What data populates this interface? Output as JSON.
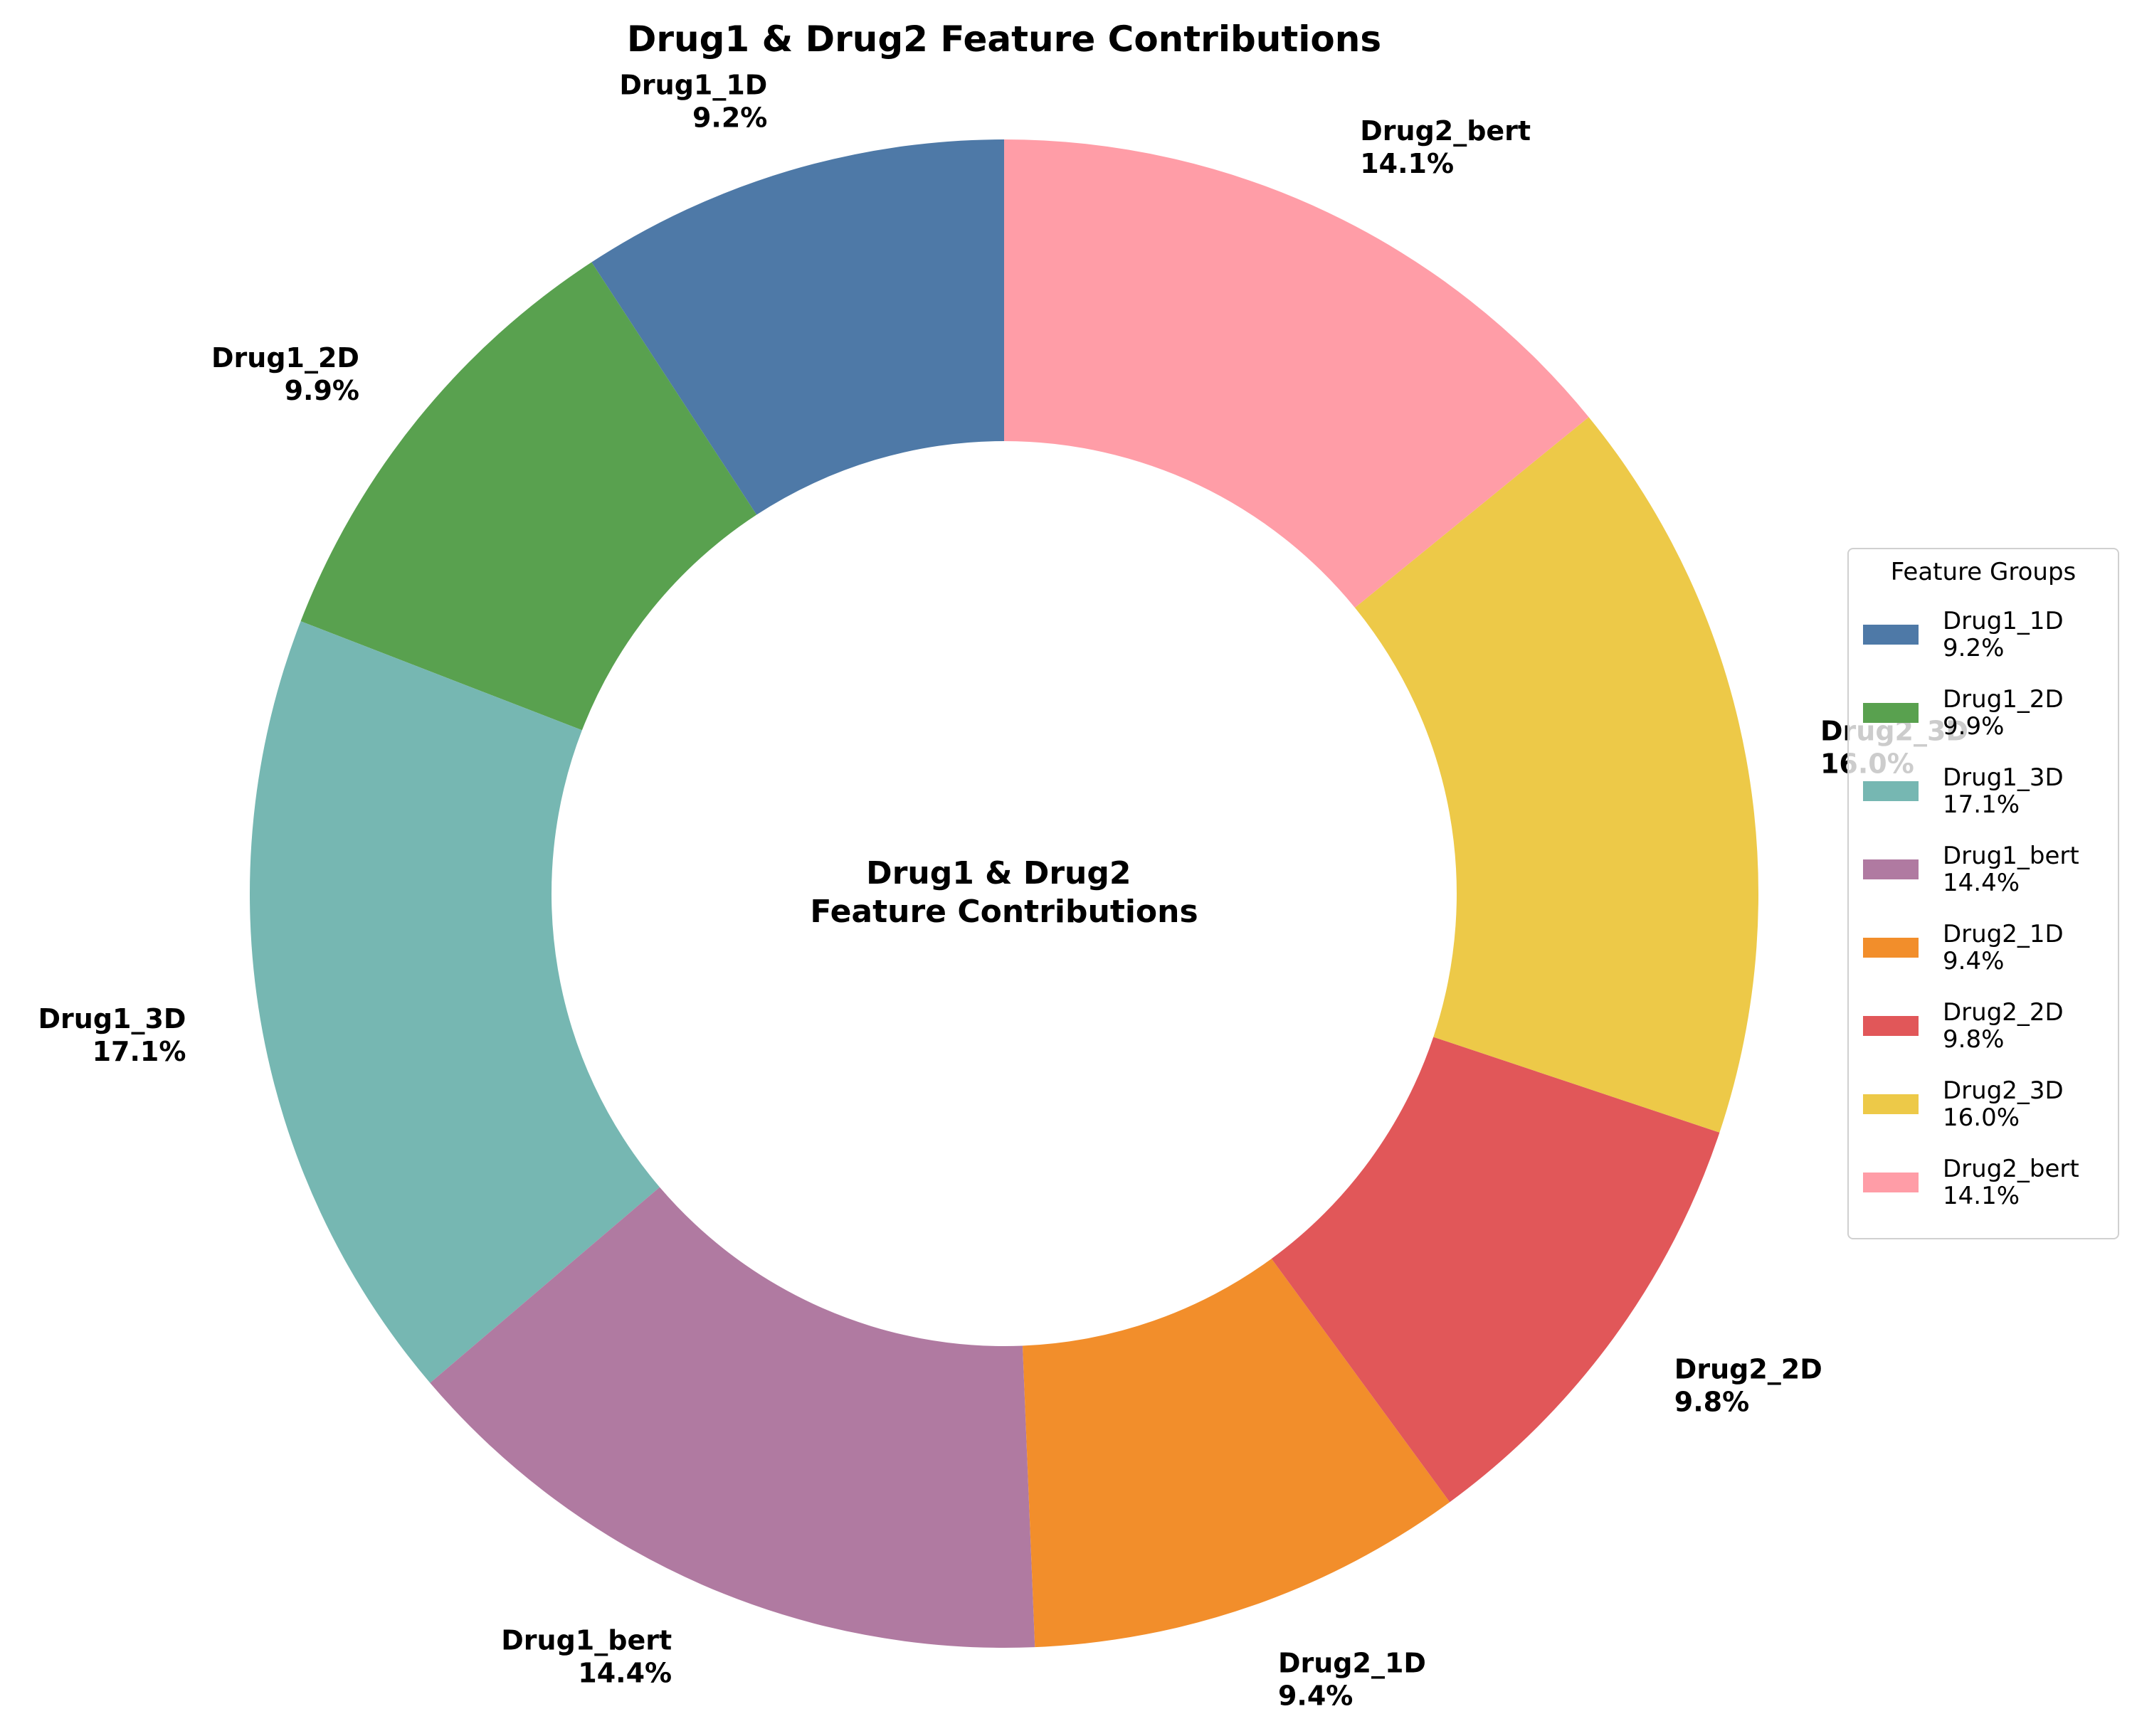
{
  "chart_data": {
    "type": "pie",
    "title": "Drug1 & Drug2 Feature Contributions",
    "center_text": [
      "Drug1 & Drug2",
      "Feature Contributions"
    ],
    "donut": true,
    "start_angle_deg": 90,
    "direction": "counterclockwise",
    "slices": [
      {
        "label": "Drug1_1D",
        "value": 9.2,
        "pct_label": "9.2%",
        "color": "#4e79a7"
      },
      {
        "label": "Drug1_2D",
        "value": 9.9,
        "pct_label": "9.9%",
        "color": "#59a14f"
      },
      {
        "label": "Drug1_3D",
        "value": 17.1,
        "pct_label": "17.1%",
        "color": "#76b7b2"
      },
      {
        "label": "Drug1_bert",
        "value": 14.4,
        "pct_label": "14.4%",
        "color": "#b07aa1"
      },
      {
        "label": "Drug2_1D",
        "value": 9.4,
        "pct_label": "9.4%",
        "color": "#f28e2b"
      },
      {
        "label": "Drug2_2D",
        "value": 9.8,
        "pct_label": "9.8%",
        "color": "#e15759"
      },
      {
        "label": "Drug2_3D",
        "value": 16.0,
        "pct_label": "16.0%",
        "color": "#edc948"
      },
      {
        "label": "Drug2_bert",
        "value": 14.1,
        "pct_label": "14.1%",
        "color": "#ff9da7"
      }
    ],
    "legend": {
      "title": "Feature Groups",
      "placement": "right"
    }
  }
}
